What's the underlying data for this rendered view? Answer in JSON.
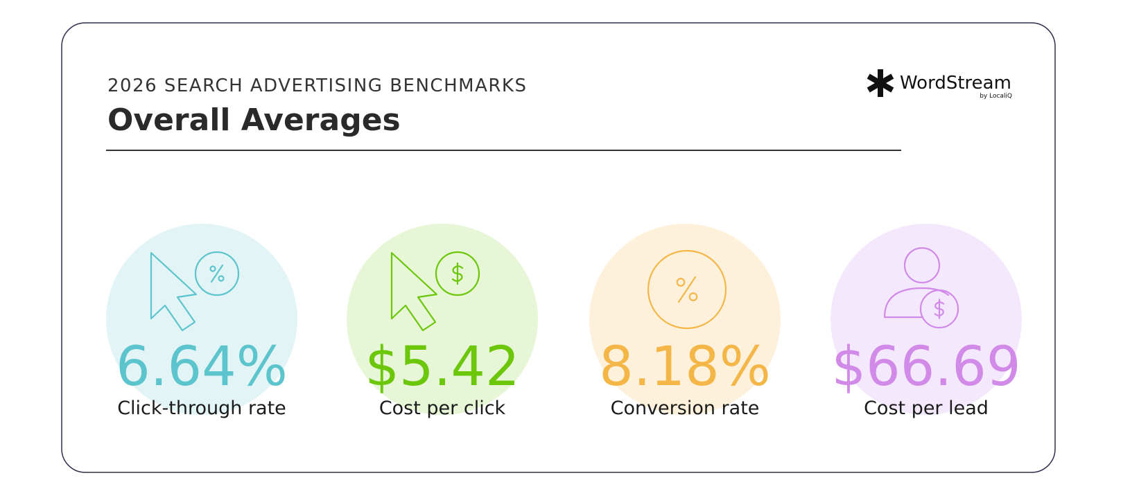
{
  "header": {
    "subtitle": "2026 SEARCH ADVERTISING BENCHMARKS",
    "title": "Overall Averages"
  },
  "logo": {
    "name": "WordStream",
    "byline": "by LocaliQ"
  },
  "stats": [
    {
      "value": "6.64%",
      "label": "Click-through rate"
    },
    {
      "value": "$5.42",
      "label": "Cost per click"
    },
    {
      "value": "8.18%",
      "label": "Conversion rate"
    },
    {
      "value": "$66.69",
      "label": "Cost per lead"
    }
  ]
}
